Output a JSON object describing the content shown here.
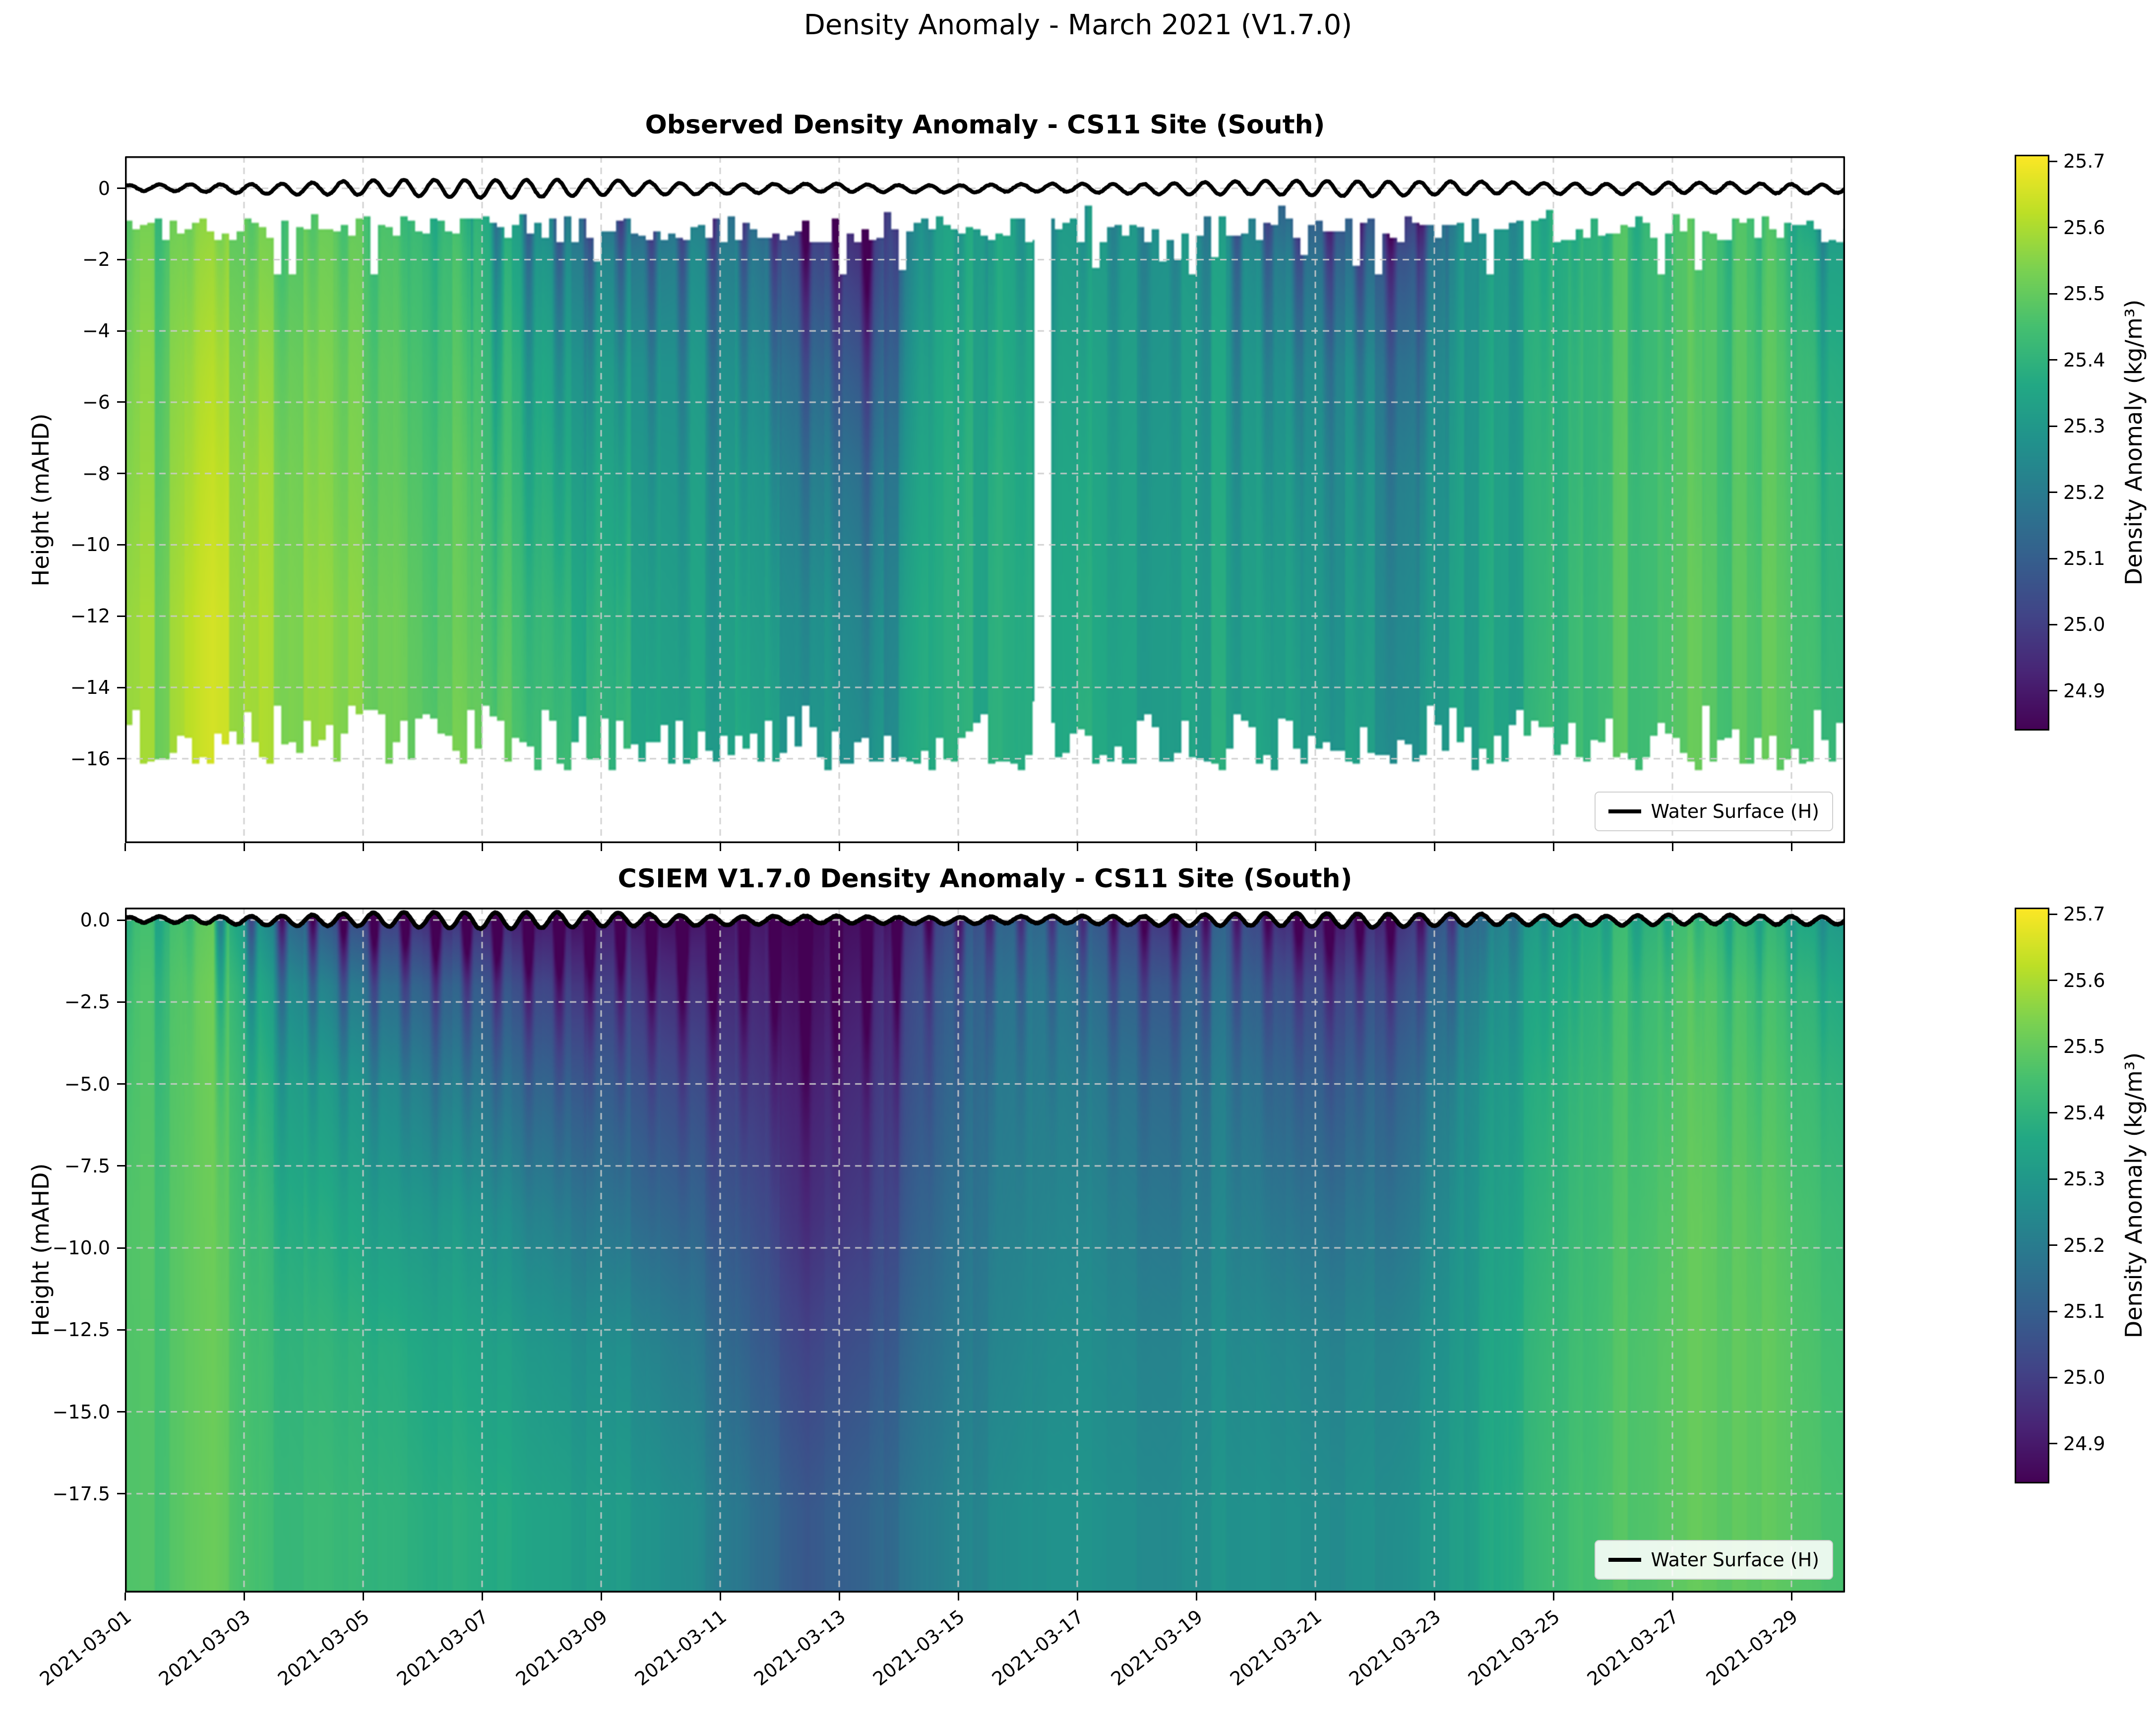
{
  "figure_title": "Density Anomaly - March 2021 (V1.7.0)",
  "panels": [
    {
      "title": "Observed Density Anomaly - CS11 Site (South)",
      "ylabel": "Height (mAHD)",
      "legend_label": "Water Surface (H)",
      "ytick_values": [
        0,
        -2,
        -4,
        -6,
        -8,
        -10,
        -12,
        -14,
        -16
      ],
      "ytick_labels": [
        "0",
        "−2",
        "−4",
        "−6",
        "−8",
        "−10",
        "−12",
        "−14",
        "−16"
      ]
    },
    {
      "title": "CSIEM V1.7.0 Density Anomaly - CS11 Site (South)",
      "ylabel": "Height (mAHD)",
      "legend_label": "Water Surface (H)",
      "ytick_values": [
        0,
        -2.5,
        -5,
        -7.5,
        -10,
        -12.5,
        -15,
        -17.5
      ],
      "ytick_labels": [
        "0.0",
        "−2.5",
        "−5.0",
        "−7.5",
        "−10.0",
        "−12.5",
        "−15.0",
        "−17.5"
      ]
    }
  ],
  "x_axis": {
    "tick_days": [
      0,
      2,
      4,
      6,
      8,
      10,
      12,
      14,
      16,
      18,
      20,
      22,
      24,
      26,
      28
    ],
    "tick_labels": [
      "2021-03-01",
      "2021-03-03",
      "2021-03-05",
      "2021-03-07",
      "2021-03-09",
      "2021-03-11",
      "2021-03-13",
      "2021-03-15",
      "2021-03-17",
      "2021-03-19",
      "2021-03-21",
      "2021-03-23",
      "2021-03-25",
      "2021-03-27",
      "2021-03-29"
    ]
  },
  "colorbar": {
    "label": "Density Anomaly (kg/m³)",
    "tick_values": [
      25.7,
      25.6,
      25.5,
      25.4,
      25.3,
      25.2,
      25.1,
      25.0,
      24.9
    ],
    "tick_labels": [
      "25.7",
      "25.6",
      "25.5",
      "25.4",
      "25.3",
      "25.2",
      "25.1",
      "25.0",
      "24.9"
    ],
    "vmin": 24.84,
    "vmax": 25.71,
    "colormap": "viridis"
  },
  "colors": {
    "water_surface_line": "#000000",
    "grid": "#cccccc",
    "axis": "#000000",
    "background": "#ffffff"
  },
  "chart_data": [
    {
      "type": "heatmap",
      "name": "observed",
      "title": "Observed Density Anomaly - CS11 Site (South)",
      "x_start_date": "2021-03-01",
      "x_day_offsets": [
        0,
        1,
        2,
        3,
        4,
        5,
        6,
        7,
        8,
        9,
        10,
        11,
        12,
        13,
        14,
        15,
        16,
        17,
        18,
        19,
        20,
        21,
        22,
        23,
        24,
        25,
        26,
        27,
        28,
        29
      ],
      "xlim_days": [
        0,
        28.9
      ],
      "ylim_mahd": [
        0.9,
        -18.37
      ],
      "depths_m": [
        0,
        -2,
        -5,
        -8,
        -12,
        -16
      ],
      "data_gap_days": [
        15.28,
        15.56
      ],
      "values_kg_per_m3": [
        [
          25.48,
          25.5,
          25.52,
          25.53,
          25.55,
          25.55
        ],
        [
          25.52,
          25.55,
          25.58,
          25.6,
          25.62,
          25.62
        ],
        [
          25.5,
          25.52,
          25.55,
          25.57,
          25.58,
          25.58
        ],
        [
          25.48,
          25.5,
          25.52,
          25.53,
          25.55,
          25.55
        ],
        [
          25.45,
          25.47,
          25.49,
          25.5,
          25.52,
          25.52
        ],
        [
          25.4,
          25.43,
          25.45,
          25.47,
          25.48,
          25.5
        ],
        [
          25.32,
          25.36,
          25.4,
          25.42,
          25.45,
          25.47
        ],
        [
          25.15,
          25.25,
          25.32,
          25.36,
          25.4,
          25.42
        ],
        [
          25.1,
          25.22,
          25.3,
          25.33,
          25.36,
          25.38
        ],
        [
          25.18,
          25.25,
          25.3,
          25.32,
          25.34,
          25.36
        ],
        [
          25.12,
          25.2,
          25.26,
          25.3,
          25.32,
          25.34
        ],
        [
          24.95,
          25.05,
          25.15,
          25.22,
          25.28,
          25.3
        ],
        [
          24.9,
          24.96,
          25.06,
          25.15,
          25.22,
          25.26
        ],
        [
          25.3,
          25.32,
          25.34,
          25.35,
          25.36,
          25.36
        ],
        [
          25.35,
          25.36,
          25.37,
          25.38,
          25.38,
          25.38
        ],
        [
          25.3,
          25.32,
          25.34,
          25.35,
          25.36,
          25.36
        ],
        [
          25.28,
          25.3,
          25.32,
          25.33,
          25.34,
          25.35
        ],
        [
          25.3,
          25.32,
          25.33,
          25.34,
          25.35,
          25.35
        ],
        [
          25.25,
          25.3,
          25.32,
          25.33,
          25.34,
          25.35
        ],
        [
          25.1,
          25.2,
          25.27,
          25.3,
          25.32,
          25.33
        ],
        [
          25.05,
          25.15,
          25.25,
          25.28,
          25.3,
          25.32
        ],
        [
          24.95,
          25.1,
          25.2,
          25.25,
          25.28,
          25.3
        ],
        [
          25.25,
          25.28,
          25.3,
          25.31,
          25.32,
          25.33
        ],
        [
          25.32,
          25.34,
          25.35,
          25.36,
          25.36,
          25.37
        ],
        [
          25.4,
          25.41,
          25.42,
          25.42,
          25.43,
          25.43
        ],
        [
          25.45,
          25.46,
          25.46,
          25.47,
          25.47,
          25.47
        ],
        [
          25.47,
          25.48,
          25.48,
          25.48,
          25.49,
          25.49
        ],
        [
          25.45,
          25.46,
          25.47,
          25.47,
          25.48,
          25.48
        ],
        [
          25.3,
          25.38,
          25.42,
          25.44,
          25.45,
          25.46
        ],
        [
          25.35,
          25.38,
          25.4,
          25.42,
          25.43,
          25.44
        ]
      ],
      "water_surface": {
        "label": "Water Surface (H)",
        "mean_m": 0.0,
        "amp_min_m": 0.1,
        "amp_max_m": 0.25,
        "semidiurnal_period_days": 0.5175,
        "spring_neap_period_days": 14.9
      }
    },
    {
      "type": "heatmap",
      "name": "csiem_v1_7_0",
      "title": "CSIEM V1.7.0 Density Anomaly - CS11 Site (South)",
      "x_start_date": "2021-03-01",
      "x_day_offsets": [
        0,
        1,
        2,
        3,
        4,
        5,
        6,
        7,
        8,
        9,
        10,
        11,
        12,
        13,
        14,
        15,
        16,
        17,
        18,
        19,
        20,
        21,
        22,
        23,
        24,
        25,
        26,
        27,
        28,
        29
      ],
      "xlim_days": [
        0,
        28.9
      ],
      "ylim_mahd": [
        0.38,
        -20.52
      ],
      "depths_m": [
        0,
        -2,
        -5,
        -9,
        -13,
        -18
      ],
      "values_kg_per_m3": [
        [
          25.42,
          25.44,
          25.45,
          25.46,
          25.46,
          25.46
        ],
        [
          25.48,
          25.5,
          25.5,
          25.5,
          25.5,
          25.5
        ],
        [
          25.2,
          25.3,
          25.36,
          25.4,
          25.42,
          25.43
        ],
        [
          25.05,
          25.2,
          25.3,
          25.36,
          25.4,
          25.42
        ],
        [
          25.0,
          25.15,
          25.25,
          25.32,
          25.38,
          25.4
        ],
        [
          24.95,
          25.1,
          25.2,
          25.3,
          25.35,
          25.38
        ],
        [
          24.92,
          25.05,
          25.15,
          25.25,
          25.32,
          25.36
        ],
        [
          24.9,
          25.0,
          25.1,
          25.2,
          25.28,
          25.33
        ],
        [
          24.92,
          25.0,
          25.08,
          25.16,
          25.25,
          25.3
        ],
        [
          24.88,
          24.96,
          25.04,
          25.12,
          25.2,
          25.26
        ],
        [
          24.9,
          24.94,
          24.99,
          25.05,
          25.1,
          25.16
        ],
        [
          24.86,
          24.88,
          24.92,
          24.96,
          25.02,
          25.08
        ],
        [
          24.88,
          24.92,
          24.96,
          25.0,
          25.06,
          25.12
        ],
        [
          25.0,
          25.05,
          25.08,
          25.12,
          25.16,
          25.2
        ],
        [
          25.1,
          25.15,
          25.18,
          25.2,
          25.22,
          25.25
        ],
        [
          25.15,
          25.2,
          25.22,
          25.24,
          25.26,
          25.28
        ],
        [
          25.05,
          25.12,
          25.18,
          25.22,
          25.25,
          25.27
        ],
        [
          25.0,
          25.1,
          25.16,
          25.2,
          25.24,
          25.26
        ],
        [
          25.1,
          25.15,
          25.2,
          25.23,
          25.26,
          25.28
        ],
        [
          24.95,
          25.05,
          25.12,
          25.18,
          25.24,
          25.27
        ],
        [
          24.92,
          25.02,
          25.1,
          25.17,
          25.23,
          25.26
        ],
        [
          25.0,
          25.08,
          25.15,
          25.2,
          25.25,
          25.28
        ],
        [
          25.15,
          25.2,
          25.25,
          25.28,
          25.3,
          25.32
        ],
        [
          25.28,
          25.32,
          25.35,
          25.37,
          25.39,
          25.4
        ],
        [
          25.38,
          25.4,
          25.42,
          25.43,
          25.44,
          25.45
        ],
        [
          25.42,
          25.45,
          25.46,
          25.47,
          25.48,
          25.48
        ],
        [
          25.45,
          25.48,
          25.49,
          25.5,
          25.5,
          25.5
        ],
        [
          25.4,
          25.44,
          25.46,
          25.48,
          25.49,
          25.49
        ],
        [
          25.35,
          25.4,
          25.43,
          25.45,
          25.46,
          25.47
        ],
        [
          25.3,
          25.36,
          25.4,
          25.43,
          25.45,
          25.46
        ]
      ],
      "water_surface": {
        "label": "Water Surface (H)",
        "mean_m": 0.0,
        "amp_min_m": 0.1,
        "amp_max_m": 0.25,
        "semidiurnal_period_days": 0.5175,
        "spring_neap_period_days": 14.9
      }
    }
  ]
}
